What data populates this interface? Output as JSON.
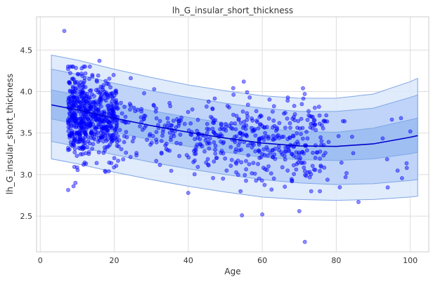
{
  "chart_data": {
    "type": "scatter",
    "title": "lh_G_insular_short_thickness",
    "xlabel": "Age",
    "ylabel": "lh_G_insular_short_thickness",
    "xlim": [
      -1,
      105
    ],
    "ylim": [
      2.07,
      4.9
    ],
    "grid": true,
    "x_ticks": [
      0,
      20,
      40,
      60,
      80,
      100
    ],
    "y_ticks": [
      2.5,
      3.0,
      3.5,
      4.0,
      4.5
    ],
    "colors": {
      "points": "#0000ff",
      "median_line": "#0000cc",
      "band_outer": "#dbe7fb",
      "band_middle": "#b9d0f7",
      "band_inner": "#99bbf2",
      "band_edge": "#7fa6e6",
      "grid": "#dddddd",
      "frame": "#cccccc"
    },
    "median_curve": {
      "x": [
        3,
        10,
        20,
        30,
        40,
        50,
        60,
        70,
        80,
        90,
        100,
        102
      ],
      "y": [
        3.84,
        3.78,
        3.68,
        3.59,
        3.51,
        3.44,
        3.38,
        3.345,
        3.34,
        3.37,
        3.45,
        3.47
      ]
    },
    "bands": [
      {
        "lower": [
          3.19,
          3.13,
          3.03,
          2.94,
          2.86,
          2.79,
          2.73,
          2.7,
          2.69,
          2.7,
          2.73,
          2.74
        ],
        "upper": [
          4.44,
          4.38,
          4.27,
          4.17,
          4.08,
          4.01,
          3.95,
          3.92,
          3.92,
          3.97,
          4.12,
          4.16
        ]
      },
      {
        "lower": [
          3.4,
          3.34,
          3.24,
          3.15,
          3.07,
          3.0,
          2.94,
          2.9,
          2.88,
          2.89,
          2.93,
          2.94
        ],
        "upper": [
          4.27,
          4.21,
          4.1,
          4.01,
          3.93,
          3.86,
          3.8,
          3.76,
          3.76,
          3.8,
          3.93,
          3.96
        ]
      },
      {
        "lower": [
          3.67,
          3.61,
          3.51,
          3.42,
          3.34,
          3.27,
          3.21,
          3.18,
          3.17,
          3.19,
          3.25,
          3.27
        ],
        "upper": [
          4.02,
          3.96,
          3.86,
          3.77,
          3.69,
          3.62,
          3.56,
          3.52,
          3.51,
          3.56,
          3.66,
          3.68
        ]
      }
    ],
    "outlier_points": [
      {
        "x": 6.5,
        "y": 4.73
      },
      {
        "x": 16,
        "y": 4.37
      },
      {
        "x": 55,
        "y": 4.12
      },
      {
        "x": 71,
        "y": 4.04
      },
      {
        "x": 54.5,
        "y": 2.51
      },
      {
        "x": 60,
        "y": 2.52
      },
      {
        "x": 71.5,
        "y": 2.19
      },
      {
        "x": 70,
        "y": 2.56
      },
      {
        "x": 40,
        "y": 2.78
      },
      {
        "x": 86,
        "y": 2.67
      },
      {
        "x": 100,
        "y": 3.52
      },
      {
        "x": 97.5,
        "y": 3.68
      },
      {
        "x": 82.5,
        "y": 2.97
      },
      {
        "x": 74,
        "y": 3.06
      },
      {
        "x": 9,
        "y": 2.86
      },
      {
        "x": 9.5,
        "y": 2.9
      },
      {
        "x": 18.5,
        "y": 3.04
      },
      {
        "x": 62.5,
        "y": 2.82
      }
    ],
    "point_groups": [
      {
        "x_range": [
          7.5,
          12.5
        ],
        "y_mean": 3.72,
        "y_sd": 0.26,
        "count": 300
      },
      {
        "x_range": [
          12.5,
          21
        ],
        "y_mean": 3.67,
        "y_sd": 0.22,
        "count": 320
      },
      {
        "x_range": [
          21,
          40
        ],
        "y_mean": 3.53,
        "y_sd": 0.2,
        "count": 110
      },
      {
        "x_range": [
          40,
          60
        ],
        "y_mean": 3.43,
        "y_sd": 0.24,
        "count": 200
      },
      {
        "x_range": [
          60,
          78
        ],
        "y_mean": 3.35,
        "y_sd": 0.26,
        "count": 190
      },
      {
        "x_range": [
          78,
          100
        ],
        "y_mean": 3.37,
        "y_sd": 0.26,
        "count": 16
      }
    ]
  }
}
